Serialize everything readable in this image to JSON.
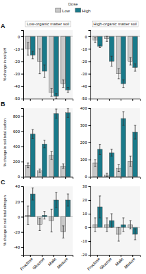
{
  "chart_data": [
    {
      "type": "bar",
      "title": "Low-organic matter soil",
      "y_label": "% change in soil pH",
      "annotation": "A",
      "legend_title": "Dose",
      "legend": "top",
      "categories": [
        null,
        null,
        null,
        null
      ],
      "series": [
        {
          "name": "Low",
          "color": "#c8c8c8",
          "values": [
            -10,
            -20,
            -45,
            -38
          ],
          "errors": [
            5,
            10,
            3,
            3
          ]
        },
        {
          "name": "High",
          "color": "#1a7a8a",
          "values": [
            -15,
            -28,
            -48,
            -43
          ],
          "errors": [
            3,
            5,
            2,
            2
          ]
        }
      ],
      "ylim": [
        -50,
        5
      ],
      "yticks": [
        -50,
        -40,
        -30,
        -20,
        -10,
        0
      ]
    },
    {
      "type": "bar",
      "title": "High-organic matter soil",
      "categories": [
        null,
        null,
        null,
        null
      ],
      "series": [
        {
          "color": "#c8c8c8",
          "values": [
            -3,
            -2,
            -30,
            -20
          ],
          "errors": [
            2,
            2,
            4,
            3
          ]
        },
        {
          "color": "#1a7a8a",
          "values": [
            -8,
            -20,
            -38,
            -25
          ],
          "errors": [
            1,
            4,
            3,
            3
          ]
        }
      ],
      "ylim": [
        -50,
        5
      ],
      "yticks": [
        -50,
        -40,
        -30,
        -20,
        -10,
        0
      ]
    },
    {
      "type": "bar",
      "y_label": "% change in soil total carbon",
      "annotation": "B",
      "categories": [
        null,
        null,
        null,
        null
      ],
      "series": [
        {
          "color": "#c8c8c8",
          "values": [
            150,
            80,
            280,
            140
          ],
          "errors": [
            30,
            20,
            50,
            30
          ]
        },
        {
          "color": "#1a7a8a",
          "values": [
            560,
            430,
            830,
            840
          ],
          "errors": [
            60,
            50,
            60,
            60
          ]
        }
      ],
      "ylim": [
        0,
        900
      ],
      "yticks": [
        0,
        200,
        400,
        600,
        800
      ]
    },
    {
      "type": "bar",
      "categories": [
        null,
        null,
        null,
        null
      ],
      "series": [
        {
          "color": "#c8c8c8",
          "values": [
            80,
            10,
            50,
            90
          ],
          "errors": [
            20,
            10,
            20,
            30
          ]
        },
        {
          "color": "#1a7a8a",
          "values": [
            160,
            140,
            340,
            260
          ],
          "errors": [
            30,
            20,
            40,
            40
          ]
        }
      ],
      "ylim": [
        0,
        400
      ],
      "yticks": [
        0,
        100,
        200,
        300,
        400
      ]
    },
    {
      "type": "bar",
      "y_label": "% change in soil total nitrogen",
      "annotation": "C",
      "categories": [
        "Fructose",
        "Glucose",
        "Malic",
        "Mixture"
      ],
      "series": [
        {
          "color": "#c8c8c8",
          "values": [
            2,
            -10,
            -5,
            -20
          ],
          "errors": [
            12,
            8,
            15,
            8
          ]
        },
        {
          "color": "#1a7a8a",
          "values": [
            30,
            2,
            22,
            22
          ],
          "errors": [
            8,
            5,
            10,
            8
          ]
        }
      ],
      "ylim": [
        -50,
        40
      ],
      "yticks": [
        -40,
        -20,
        0,
        20,
        40
      ]
    },
    {
      "type": "bar",
      "categories": [
        "Fructose",
        "Glucose",
        "Malic",
        "Mixture"
      ],
      "series": [
        {
          "color": "#c8c8c8",
          "values": [
            2,
            2,
            -5,
            2
          ],
          "errors": [
            5,
            5,
            5,
            3
          ]
        },
        {
          "color": "#1a7a8a",
          "values": [
            15,
            5,
            2,
            -5
          ],
          "errors": [
            8,
            5,
            5,
            4
          ]
        }
      ],
      "ylim": [
        -20,
        30
      ],
      "yticks": [
        -20,
        -10,
        0,
        10,
        20,
        30
      ]
    }
  ]
}
